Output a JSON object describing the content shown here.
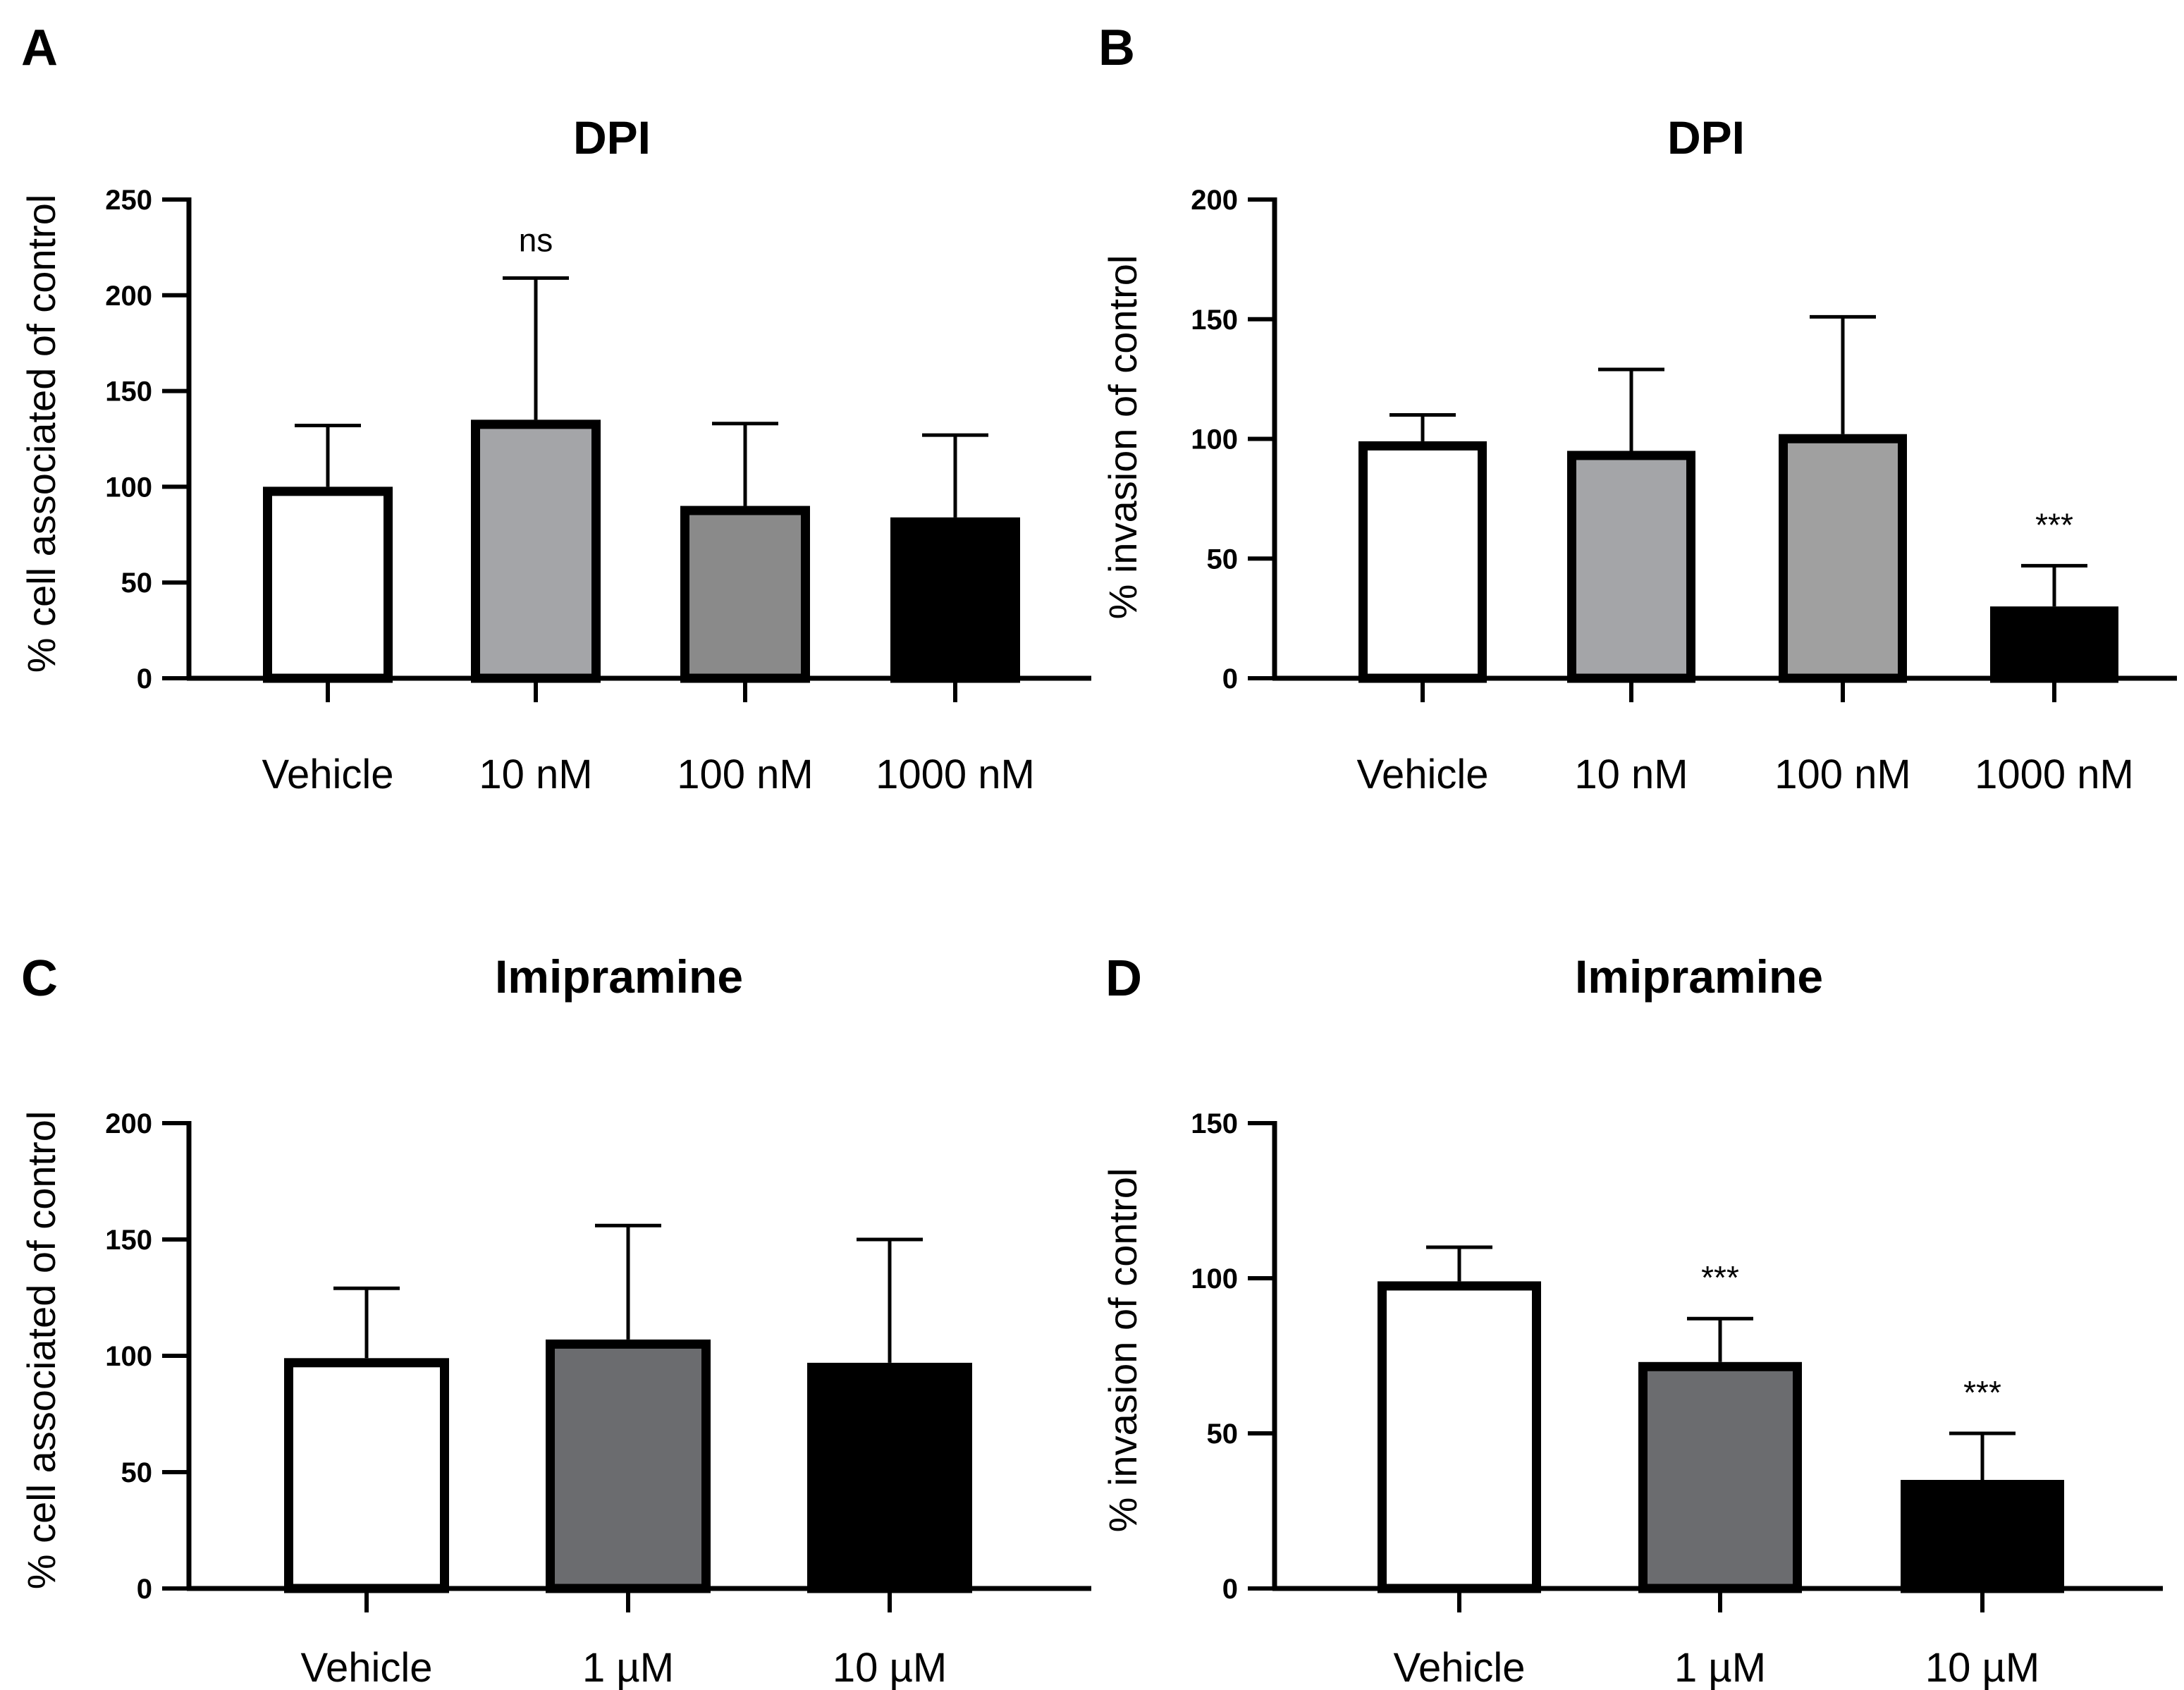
{
  "chart_data": [
    {
      "panel": "A",
      "type": "bar",
      "title": "DPI",
      "ylabel": "% cell associated of control",
      "xlabel": "",
      "ylim": [
        0,
        250
      ],
      "yticks": [
        "0",
        "50",
        "100",
        "150",
        "200",
        "250"
      ],
      "categories": [
        "Vehicle",
        "10 nM",
        "100 nM",
        "1000 nM"
      ],
      "values": [
        100,
        135,
        90,
        84
      ],
      "errors": [
        32,
        74,
        43,
        43
      ],
      "fills": [
        "#ffffff",
        "#a4a5a8",
        "#8a8a8a",
        "#000000"
      ],
      "annotations": [
        "",
        "ns",
        "",
        ""
      ]
    },
    {
      "panel": "B",
      "type": "bar",
      "title": "DPI",
      "ylabel": "% invasion of control",
      "xlabel": "",
      "ylim": [
        0,
        200
      ],
      "yticks": [
        "0",
        "50",
        "100",
        "150",
        "200"
      ],
      "categories": [
        "Vehicle",
        "10 nM",
        "100 nM",
        "1000 nM"
      ],
      "values": [
        99,
        95,
        102,
        30
      ],
      "errors": [
        11,
        34,
        49,
        17
      ],
      "fills": [
        "#ffffff",
        "#a4a5a8",
        "#a0a0a0",
        "#000000"
      ],
      "annotations": [
        "",
        "",
        "",
        "***"
      ]
    },
    {
      "panel": "C",
      "type": "bar",
      "title": "Imipramine",
      "ylabel": "% cell associated of control",
      "xlabel": "",
      "ylim": [
        0,
        200
      ],
      "yticks": [
        "0",
        "50",
        "100",
        "150",
        "200"
      ],
      "categories": [
        "Vehicle",
        "1 µM",
        "10 µM"
      ],
      "values": [
        99,
        107,
        97
      ],
      "errors": [
        30,
        49,
        53
      ],
      "fills": [
        "#ffffff",
        "#6b6c6f",
        "#000000"
      ],
      "annotations": [
        "",
        "",
        ""
      ]
    },
    {
      "panel": "D",
      "type": "bar",
      "title": "Imipramine",
      "ylabel": "% invasion of control",
      "xlabel": "",
      "ylim": [
        0,
        150
      ],
      "yticks": [
        "0",
        "50",
        "100",
        "150"
      ],
      "categories": [
        "Vehicle",
        "1 µM",
        "10 µM"
      ],
      "values": [
        99,
        73,
        35
      ],
      "errors": [
        11,
        14,
        15
      ],
      "fills": [
        "#ffffff",
        "#6b6c6f",
        "#000000"
      ],
      "annotations": [
        "",
        "***",
        "***"
      ]
    }
  ]
}
